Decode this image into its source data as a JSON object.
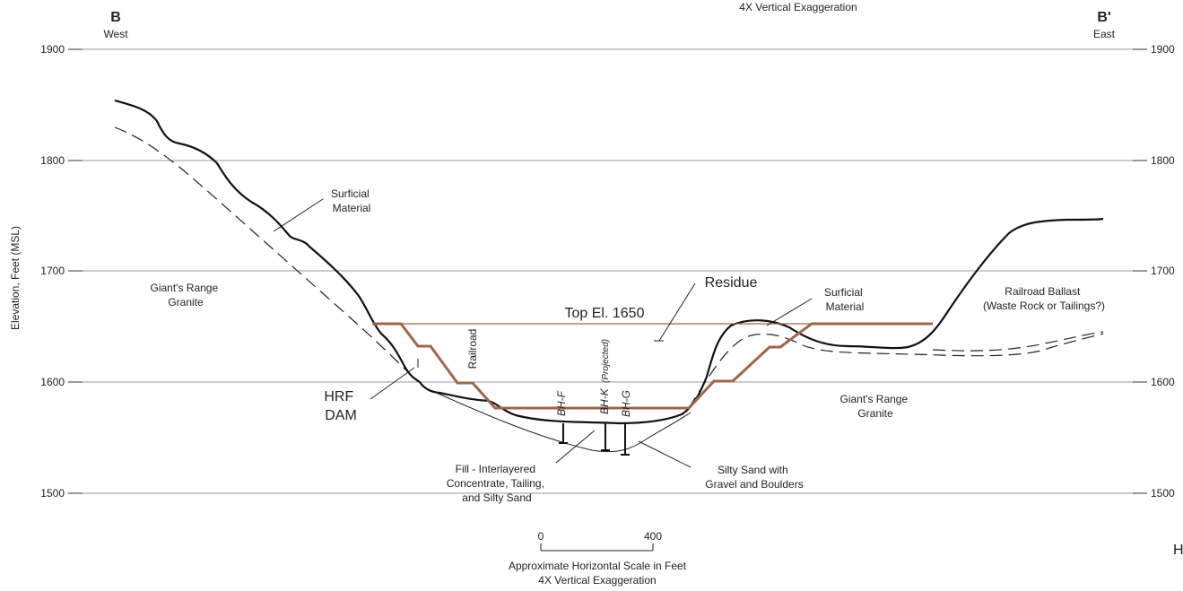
{
  "title_top": "4X Vertical Exaggeration",
  "section": {
    "west_letter": "B",
    "west_label": "West",
    "east_letter": "B'",
    "east_label": "East"
  },
  "axis": {
    "ylabel": "Elevation, Feet (MSL)",
    "ticks": [
      "1900",
      "1800",
      "1700",
      "1600",
      "1500"
    ]
  },
  "labels": {
    "surficial_left": [
      "Surficial",
      "Material"
    ],
    "surficial_right": [
      "Surficial",
      "Material"
    ],
    "granite_left": [
      "Giant's Range",
      "Granite"
    ],
    "granite_right": [
      "Giant's Range",
      "Granite"
    ],
    "residue": "Residue",
    "top_el": "Top El. 1650",
    "railroad_ballast": [
      "Railroad Ballast",
      "(Waste Rock or Tailings?)"
    ],
    "railroad": "Railroad",
    "hrf_dam": [
      "HRF",
      "DAM"
    ],
    "bh_f": "BH-F",
    "bh_k": "BH-K",
    "bh_k_note": "(Projected)",
    "bh_g": "BH-G",
    "fill": [
      "Fill - Interlayered",
      "Concentrate, Tailing,",
      "and Silty Sand"
    ],
    "silty_sand": [
      "Silty Sand with",
      "Gravel and Boulders"
    ]
  },
  "scale": {
    "zero": "0",
    "max": "400",
    "caption": "Approximate Horizontal Scale in Feet",
    "exaggeration": "4X Vertical Exaggeration"
  },
  "edge_glyph": "H",
  "colors": {
    "ground": "#111111",
    "dam": "#a0654a",
    "grid": "#999999"
  }
}
